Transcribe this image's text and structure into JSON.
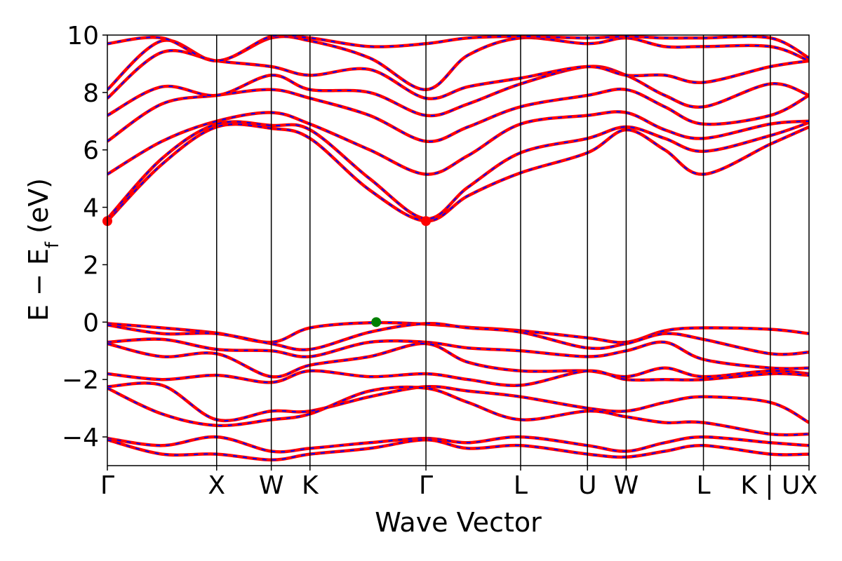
{
  "chart_data": {
    "type": "line",
    "xlabel": "Wave Vector",
    "ylabel": "E − E",
    "ylabel_sub": "f",
    "ylabel_unit": " (eV)",
    "ylim": [
      -5,
      10
    ],
    "yticks": [
      -4,
      -2,
      0,
      2,
      4,
      6,
      8,
      10
    ],
    "ytick_labels": [
      "−4",
      "−2",
      "0",
      "2",
      "4",
      "6",
      "8",
      "10"
    ],
    "kpath_ticks": [
      {
        "label": "Γ",
        "k": 0.0
      },
      {
        "label": "X",
        "k": 1.0
      },
      {
        "label": "W",
        "k": 1.5
      },
      {
        "label": "K",
        "k": 1.854
      },
      {
        "label": "Γ",
        "k": 2.915
      },
      {
        "label": "L",
        "k": 3.781
      },
      {
        "label": "U",
        "k": 4.393
      },
      {
        "label": "W",
        "k": 4.747
      },
      {
        "label": "L",
        "k": 5.454
      },
      {
        "label": "K | U",
        "k": 6.066
      },
      {
        "label": "X",
        "k": 6.42
      }
    ],
    "grid": false,
    "series_colors": {
      "bands_a": "#ff0000",
      "bands_b": "#0000ff"
    },
    "special_points": [
      {
        "label": "CBM",
        "k": 2.915,
        "e": 3.52,
        "color": "#ff0000"
      },
      {
        "label": "CBM",
        "k": 0.0,
        "e": 3.52,
        "color": "#ff0000"
      },
      {
        "label": "VBM",
        "k": 2.46,
        "e": 0.0,
        "color": "#008000"
      }
    ],
    "bands": [
      {
        "k": [
          0,
          0.5,
          1.0,
          1.5,
          1.854,
          2.4,
          2.915,
          3.3,
          3.781,
          4.393,
          4.747,
          5.1,
          5.454,
          6.066,
          6.42
        ],
        "e": [
          -0.05,
          -0.2,
          -0.38,
          -0.7,
          -0.2,
          -0.02,
          -0.07,
          -0.18,
          -0.3,
          -0.55,
          -0.7,
          -0.3,
          -0.2,
          -0.25,
          -0.4
        ]
      },
      {
        "k": [
          0,
          0.5,
          1.0,
          1.5,
          1.854,
          2.4,
          2.915,
          3.3,
          3.781,
          4.393,
          4.747,
          5.1,
          5.454,
          6.066,
          6.42
        ],
        "e": [
          -0.1,
          -0.4,
          -0.4,
          -0.75,
          -0.95,
          -0.35,
          -0.05,
          -0.2,
          -0.35,
          -0.9,
          -0.75,
          -0.4,
          -0.6,
          -1.1,
          -1.05
        ]
      },
      {
        "k": [
          0,
          0.5,
          1.0,
          1.5,
          1.854,
          2.4,
          2.915,
          3.3,
          3.781,
          4.393,
          4.747,
          5.1,
          5.454,
          6.066,
          6.42
        ],
        "e": [
          -0.7,
          -0.6,
          -0.95,
          -1.0,
          -1.2,
          -0.7,
          -0.7,
          -0.9,
          -1.0,
          -1.2,
          -1.0,
          -0.7,
          -1.3,
          -1.6,
          -1.6
        ]
      },
      {
        "k": [
          0,
          0.5,
          1.0,
          1.5,
          1.854,
          2.4,
          2.915,
          3.3,
          3.781,
          4.393,
          4.747,
          5.1,
          5.454,
          6.066,
          6.42
        ],
        "e": [
          -0.75,
          -1.2,
          -1.1,
          -1.9,
          -1.5,
          -1.2,
          -0.75,
          -1.4,
          -1.7,
          -1.7,
          -1.9,
          -1.6,
          -1.9,
          -1.7,
          -1.8
        ]
      },
      {
        "k": [
          0,
          0.5,
          1.0,
          1.5,
          1.854,
          2.4,
          2.915,
          3.3,
          3.781,
          4.393,
          4.747,
          5.1,
          5.454,
          6.066,
          6.42
        ],
        "e": [
          -1.8,
          -2.0,
          -1.85,
          -2.1,
          -1.7,
          -1.9,
          -1.8,
          -2.0,
          -2.2,
          -1.7,
          -2.0,
          -2.0,
          -2.0,
          -1.8,
          -1.85
        ]
      },
      {
        "k": [
          0,
          0.5,
          1.0,
          1.5,
          1.854,
          2.4,
          2.915,
          3.3,
          3.781,
          4.393,
          4.747,
          5.1,
          5.454,
          6.066,
          6.42
        ],
        "e": [
          -2.25,
          -2.2,
          -3.4,
          -3.1,
          -3.1,
          -2.6,
          -2.25,
          -2.4,
          -2.6,
          -3.0,
          -3.1,
          -2.8,
          -2.6,
          -2.8,
          -3.5
        ]
      },
      {
        "k": [
          0,
          0.5,
          1.0,
          1.5,
          1.854,
          2.4,
          2.915,
          3.3,
          3.781,
          4.393,
          4.747,
          5.1,
          5.454,
          6.066,
          6.42
        ],
        "e": [
          -2.3,
          -3.2,
          -3.6,
          -3.4,
          -3.2,
          -2.4,
          -2.3,
          -2.8,
          -3.4,
          -3.1,
          -3.3,
          -3.5,
          -3.5,
          -3.9,
          -3.9
        ]
      },
      {
        "k": [
          0,
          0.5,
          1.0,
          1.5,
          1.854,
          2.4,
          2.915,
          3.3,
          3.781,
          4.393,
          4.747,
          5.1,
          5.454,
          6.066,
          6.42
        ],
        "e": [
          -4.05,
          -4.3,
          -4.0,
          -4.5,
          -4.4,
          -4.2,
          -4.05,
          -4.2,
          -4.0,
          -4.3,
          -4.5,
          -4.2,
          -4.0,
          -4.2,
          -4.3
        ]
      },
      {
        "k": [
          0,
          0.5,
          1.0,
          1.5,
          1.854,
          2.4,
          2.915,
          3.3,
          3.781,
          4.393,
          4.747,
          5.1,
          5.454,
          6.066,
          6.42
        ],
        "e": [
          -4.1,
          -4.6,
          -4.6,
          -4.8,
          -4.6,
          -4.4,
          -4.1,
          -4.4,
          -4.3,
          -4.6,
          -4.7,
          -4.5,
          -4.3,
          -4.6,
          -4.6
        ]
      },
      {
        "k": [
          0,
          0.5,
          1.0,
          1.5,
          1.854,
          2.4,
          2.915,
          3.3,
          3.781,
          4.393,
          4.747,
          5.1,
          5.454,
          6.066,
          6.42
        ],
        "e": [
          3.52,
          5.5,
          6.8,
          6.75,
          6.4,
          4.6,
          3.52,
          4.4,
          5.2,
          5.9,
          6.7,
          6.0,
          5.15,
          6.2,
          6.8
        ]
      },
      {
        "k": [
          0,
          0.5,
          1.0,
          1.5,
          1.854,
          2.4,
          2.915,
          3.3,
          3.781,
          4.393,
          4.747,
          5.1,
          5.454,
          6.066,
          6.42
        ],
        "e": [
          3.6,
          5.7,
          6.9,
          6.85,
          6.7,
          5.0,
          3.6,
          4.7,
          5.9,
          6.4,
          6.8,
          6.4,
          5.95,
          6.5,
          6.95
        ]
      },
      {
        "k": [
          0,
          0.5,
          1.0,
          1.5,
          1.854,
          2.4,
          2.915,
          3.3,
          3.781,
          4.393,
          4.747,
          5.1,
          5.454,
          6.066,
          6.42
        ],
        "e": [
          5.15,
          6.3,
          7.0,
          7.3,
          6.9,
          6.0,
          5.15,
          5.8,
          6.9,
          7.2,
          7.3,
          6.7,
          6.4,
          6.9,
          7.0
        ]
      },
      {
        "k": [
          0,
          0.5,
          1.0,
          1.5,
          1.854,
          2.4,
          2.915,
          3.3,
          3.781,
          4.393,
          4.747,
          5.1,
          5.454,
          6.066,
          6.42
        ],
        "e": [
          6.3,
          7.6,
          7.9,
          8.1,
          7.8,
          7.2,
          6.3,
          6.8,
          7.5,
          7.9,
          8.1,
          7.5,
          6.9,
          7.2,
          7.9
        ]
      },
      {
        "k": [
          0,
          0.5,
          1.0,
          1.5,
          1.854,
          2.4,
          2.915,
          3.3,
          3.781,
          4.393,
          4.747,
          5.1,
          5.454,
          6.066,
          6.42
        ],
        "e": [
          7.2,
          8.2,
          7.9,
          8.6,
          8.1,
          8.0,
          7.2,
          7.6,
          8.3,
          8.9,
          8.6,
          7.9,
          7.5,
          8.3,
          7.9
        ]
      },
      {
        "k": [
          0,
          0.5,
          1.0,
          1.5,
          1.854,
          2.4,
          2.915,
          3.3,
          3.781,
          4.393,
          4.747,
          5.1,
          5.454,
          6.066,
          6.42
        ],
        "e": [
          7.8,
          9.4,
          9.1,
          8.9,
          8.6,
          8.8,
          7.8,
          8.2,
          8.5,
          8.9,
          8.6,
          8.6,
          8.35,
          8.9,
          9.1
        ]
      },
      {
        "k": [
          0,
          0.5,
          1.0,
          1.5,
          1.854,
          2.4,
          2.915,
          3.3,
          3.781,
          4.393,
          4.747,
          5.1,
          5.454,
          6.066,
          6.42
        ],
        "e": [
          8.1,
          9.8,
          9.1,
          9.9,
          9.8,
          9.2,
          8.1,
          9.3,
          9.9,
          9.7,
          9.9,
          9.6,
          9.6,
          9.6,
          9.1
        ]
      },
      {
        "k": [
          0,
          0.5,
          1.0,
          1.5,
          1.854,
          2.4,
          2.915,
          3.3,
          3.781,
          4.393,
          4.747,
          5.1,
          5.454,
          6.066,
          6.42
        ],
        "e": [
          9.7,
          9.9,
          9.1,
          9.95,
          9.9,
          9.6,
          9.7,
          9.9,
          9.95,
          9.9,
          9.95,
          9.9,
          9.9,
          9.9,
          9.2
        ]
      }
    ]
  }
}
